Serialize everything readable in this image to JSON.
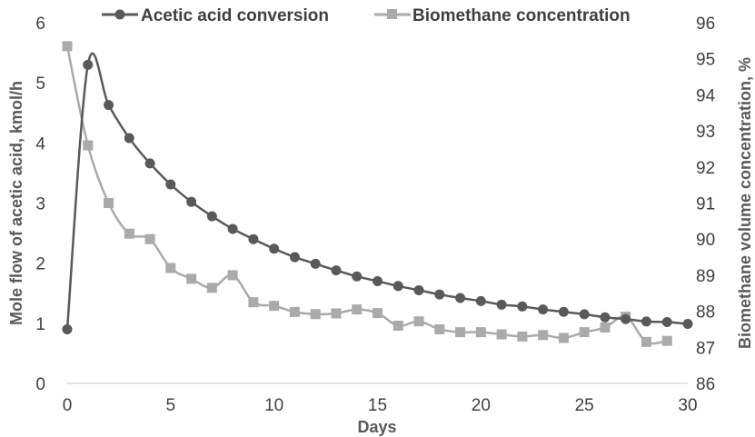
{
  "chart_data": {
    "type": "line",
    "title": "",
    "xlabel": "Days",
    "ylabel_left": "Mole flow of acetic acid, kmol/h",
    "ylabel_right": "Biomethane volume concentration, %",
    "xlim": [
      0,
      30
    ],
    "ylim_left": [
      0,
      6
    ],
    "ylim_right": [
      86,
      96
    ],
    "x_ticks": [
      0,
      5,
      10,
      15,
      20,
      25,
      30
    ],
    "y_ticks_left": [
      0,
      1,
      2,
      3,
      4,
      5,
      6
    ],
    "y_ticks_right": [
      86,
      87,
      88,
      89,
      90,
      91,
      92,
      93,
      94,
      95,
      96
    ],
    "grid": false,
    "legend_position": "top",
    "series": [
      {
        "name": "Acetic acid conversion",
        "axis": "left",
        "marker": "circle",
        "color": "#595959",
        "x": [
          0,
          1,
          2,
          3,
          4,
          5,
          6,
          7,
          8,
          9,
          10,
          11,
          12,
          13,
          14,
          15,
          16,
          17,
          18,
          19,
          20,
          21,
          22,
          23,
          24,
          25,
          26,
          27,
          28,
          29,
          30
        ],
        "values": [
          0.9,
          5.3,
          4.63,
          4.08,
          3.66,
          3.31,
          3.02,
          2.78,
          2.57,
          2.4,
          2.24,
          2.1,
          1.99,
          1.88,
          1.78,
          1.7,
          1.62,
          1.55,
          1.48,
          1.42,
          1.37,
          1.31,
          1.28,
          1.23,
          1.19,
          1.15,
          1.1,
          1.07,
          1.03,
          1.02,
          0.99
        ]
      },
      {
        "name": "Biomethane concentration",
        "axis": "right",
        "marker": "square",
        "color": "#aaaaaa",
        "x": [
          0,
          1,
          2,
          3,
          4,
          5,
          6,
          7,
          8,
          9,
          10,
          11,
          12,
          13,
          14,
          15,
          16,
          17,
          18,
          19,
          20,
          21,
          22,
          23,
          24,
          25,
          26,
          27,
          28,
          29
        ],
        "values": [
          95.35,
          92.6,
          91.0,
          90.15,
          90.0,
          89.2,
          88.9,
          88.65,
          89.0,
          88.25,
          88.15,
          87.98,
          87.92,
          87.94,
          88.05,
          87.95,
          87.6,
          87.72,
          87.5,
          87.42,
          87.42,
          87.36,
          87.3,
          87.34,
          87.26,
          87.42,
          87.55,
          87.85,
          87.15,
          87.18
        ]
      }
    ]
  }
}
